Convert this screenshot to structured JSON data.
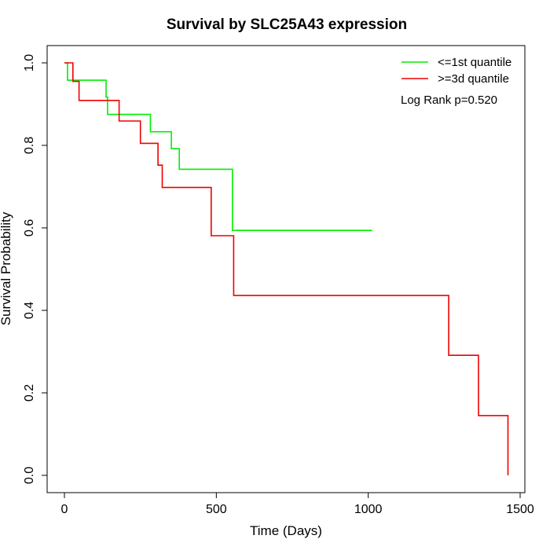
{
  "chart_data": {
    "type": "line",
    "title": "Survival by SLC25A43 expression",
    "xlabel": "Time (Days)",
    "ylabel": "Survival Probability",
    "xlim": [
      0,
      1500
    ],
    "ylim": [
      0,
      1
    ],
    "xticks": [
      0,
      500,
      1000,
      1500
    ],
    "yticks": [
      0.0,
      0.2,
      0.4,
      0.6,
      0.8,
      1.0
    ],
    "xtick_labels": [
      "0",
      "500",
      "1000",
      "1500"
    ],
    "ytick_labels": [
      "0.0",
      "0.2",
      "0.4",
      "0.6",
      "0.8",
      "1.0"
    ],
    "grid": false,
    "legend_position": "top-right",
    "annotation": "Log Rank p=0.520",
    "series": [
      {
        "name": "<=1st quantile",
        "color": "#00ee00",
        "step": true,
        "x": [
          0,
          10,
          10,
          137,
          137,
          142,
          142,
          283,
          283,
          352,
          352,
          378,
          378,
          553,
          553,
          1013
        ],
        "y": [
          1.0,
          1.0,
          0.958,
          0.958,
          0.917,
          0.917,
          0.875,
          0.875,
          0.833,
          0.833,
          0.792,
          0.792,
          0.742,
          0.742,
          0.594,
          0.594
        ]
      },
      {
        "name": ">=3d quantile",
        "color": "#ee0000",
        "step": true,
        "x": [
          0,
          28,
          28,
          48,
          48,
          180,
          180,
          250,
          250,
          308,
          308,
          322,
          322,
          483,
          483,
          557,
          557,
          1265,
          1265,
          1363,
          1363,
          1460,
          1460
        ],
        "y": [
          1.0,
          1.0,
          0.955,
          0.955,
          0.909,
          0.909,
          0.859,
          0.859,
          0.805,
          0.805,
          0.752,
          0.752,
          0.698,
          0.698,
          0.581,
          0.581,
          0.436,
          0.436,
          0.291,
          0.291,
          0.145,
          0.145,
          0.0
        ]
      }
    ]
  }
}
